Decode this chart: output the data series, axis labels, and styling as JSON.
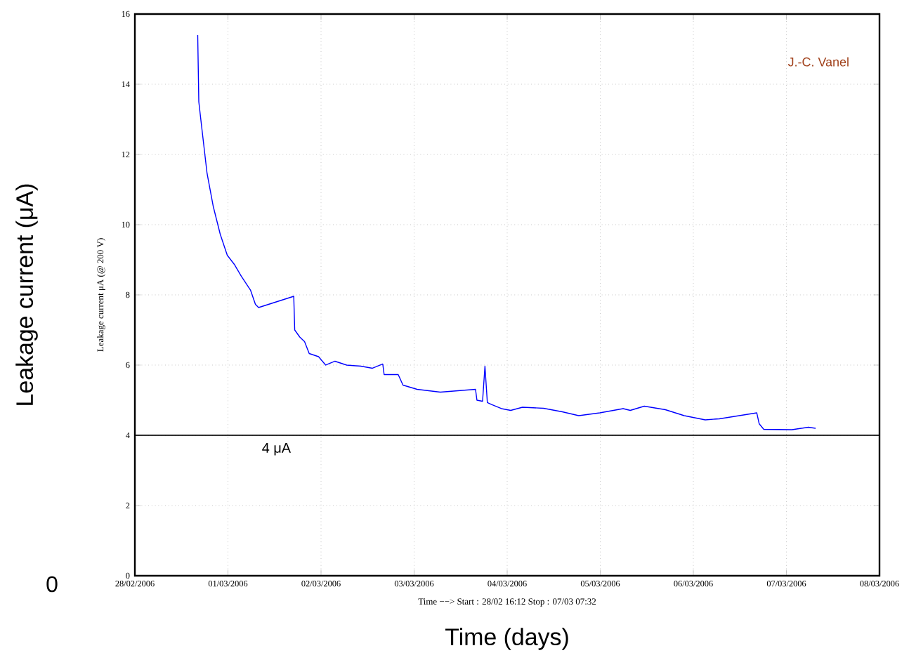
{
  "chart_data": {
    "type": "line",
    "xlabel": "Time (days)",
    "ylabel": "Leakage current (μA)",
    "annotations": [
      "Leakage current  μA (@ 200 V)",
      "Time −−>  Start : 28/02 16:12  Stop : 07/03 07:32",
      "J.-C. Vanel",
      "0"
    ],
    "x": [
      "2006-02-28T16:12",
      "2006-02-28T16:29",
      "2006-02-28T17:08",
      "2006-02-28T18:36",
      "2006-02-28T20:11",
      "2006-02-28T22:00",
      "2006-02-28T23:49",
      "2006-03-01T01:38",
      "2006-03-01T03:26",
      "2006-03-01T05:50",
      "2006-03-01T07:05",
      "2006-03-01T07:54",
      "2006-03-01T16:58",
      "2006-03-01T17:13",
      "2006-03-01T18:31",
      "2006-03-01T19:45",
      "2006-03-01T20:57",
      "2006-03-01T23:22",
      "2006-03-02T01:12",
      "2006-03-02T03:36",
      "2006-03-02T06:37",
      "2006-03-02T10:15",
      "2006-03-02T13:16",
      "2006-03-02T15:55",
      "2006-03-02T16:16",
      "2006-03-02T19:54",
      "2006-03-02T21:08",
      "2006-03-03T00:46",
      "2006-03-03T06:46",
      "2006-03-03T15:50",
      "2006-03-03T16:12",
      "2006-03-03T17:39",
      "2006-03-03T18:16",
      "2006-03-03T18:53",
      "2006-03-03T20:05",
      "2006-03-03T22:31",
      "2006-03-04T00:55",
      "2006-03-04T03:57",
      "2006-03-04T09:23",
      "2006-03-04T14:12",
      "2006-03-04T18:27",
      "2006-03-04T23:53",
      "2006-03-05T05:54",
      "2006-03-05T07:44",
      "2006-03-05T11:21",
      "2006-03-05T16:47",
      "2006-03-05T21:39",
      "2006-03-06T03:04",
      "2006-03-06T06:42",
      "2006-03-06T16:21",
      "2006-03-06T16:58",
      "2006-03-06T18:10",
      "2006-03-07T01:25",
      "2006-03-07T05:40",
      "2006-03-07T07:32"
    ],
    "series": [
      {
        "color": "#0000ff",
        "values": [
          15.4,
          13.5,
          12.87,
          11.47,
          10.53,
          9.73,
          9.13,
          8.87,
          8.53,
          8.13,
          7.73,
          7.64,
          7.96,
          7.0,
          6.8,
          6.67,
          6.33,
          6.24,
          6.0,
          6.11,
          6.0,
          5.97,
          5.91,
          6.03,
          5.73,
          5.73,
          5.43,
          5.31,
          5.23,
          5.31,
          5.0,
          4.97,
          5.97,
          4.93,
          4.87,
          4.76,
          4.71,
          4.8,
          4.77,
          4.67,
          4.56,
          4.64,
          4.76,
          4.71,
          4.83,
          4.73,
          4.56,
          4.44,
          4.47,
          4.64,
          4.33,
          4.17,
          4.16,
          4.23,
          4.2
        ]
      }
    ],
    "xlim": [
      "2006-02-28",
      "2006-03-08"
    ],
    "xticks": [
      {
        "value": "2006-02-28",
        "label": "28/02/2006"
      },
      {
        "value": "2006-03-01",
        "label": "01/03/2006"
      },
      {
        "value": "2006-03-02",
        "label": "02/03/2006"
      },
      {
        "value": "2006-03-03",
        "label": "03/03/2006"
      },
      {
        "value": "2006-03-04",
        "label": "04/03/2006"
      },
      {
        "value": "2006-03-05",
        "label": "05/03/2006"
      },
      {
        "value": "2006-03-06",
        "label": "06/03/2006"
      },
      {
        "value": "2006-03-07",
        "label": "07/03/2006"
      },
      {
        "value": "2006-03-08",
        "label": "08/03/2006"
      }
    ],
    "ylim": [
      0,
      16
    ],
    "yticks": [
      0,
      2,
      4,
      6,
      8,
      10,
      12,
      14,
      16
    ],
    "ref_lines": [
      {
        "axis": "y",
        "value": 4,
        "label": "4 μA",
        "color": "#000000"
      }
    ],
    "grid": true,
    "marker": "none",
    "line_style": "solid"
  }
}
